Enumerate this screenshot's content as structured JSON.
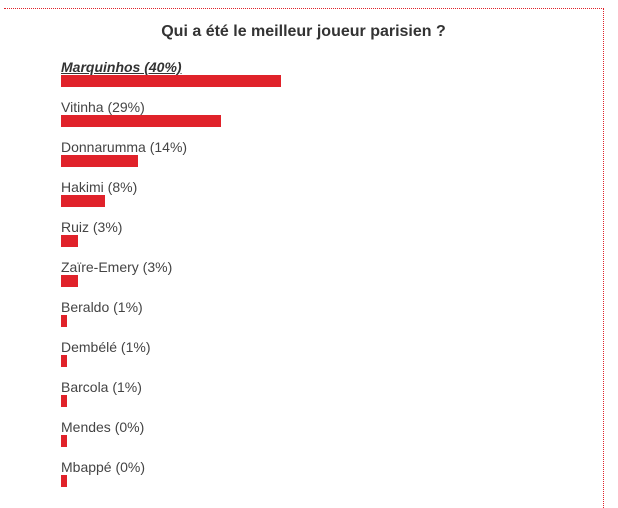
{
  "poll": {
    "title": "Qui a été le meilleur joueur parisien ?",
    "bar_color": "#e0222a",
    "options": [
      {
        "label": "Marquinhos (40%)",
        "percent": 40,
        "winner": true
      },
      {
        "label": "Vitinha (29%)",
        "percent": 29
      },
      {
        "label": "Donnarumma (14%)",
        "percent": 14
      },
      {
        "label": "Hakimi (8%)",
        "percent": 8
      },
      {
        "label": "Ruiz (3%)",
        "percent": 3
      },
      {
        "label": "Zaïre-Emery (3%)",
        "percent": 3
      },
      {
        "label": "Beraldo (1%)",
        "percent": 1
      },
      {
        "label": "Dembélé (1%)",
        "percent": 1
      },
      {
        "label": "Barcola (1%)",
        "percent": 1
      },
      {
        "label": "Mendes (0%)",
        "percent": 0
      },
      {
        "label": "Mbappé (0%)",
        "percent": 0
      }
    ]
  }
}
